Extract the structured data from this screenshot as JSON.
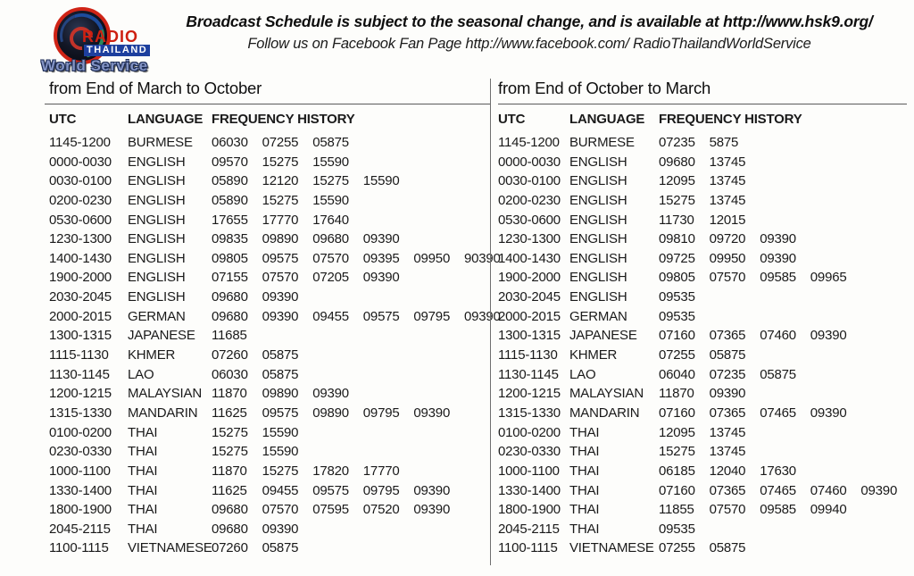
{
  "colors": {
    "logo_red": "#ce2011",
    "logo_blue": "#1d3f9e",
    "world_service_blue": "#8494c5",
    "ink": "#1a1a1a",
    "paper": "#fdfdfb"
  },
  "masthead": {
    "logo": {
      "radio": "RADIO",
      "thailand": "THAILAND",
      "world_service": "World Service"
    },
    "notice_line1": "Broadcast Schedule is subject to the seasonal change, and is available at http://www.hsk9.org/",
    "notice_line2": "Follow us on Facebook Fan Page  http://www.facebook.com/ RadioThailandWorldService"
  },
  "schedules": [
    {
      "season_title": "from End of March to October",
      "columns": {
        "utc": "UTC",
        "language": "LANGUAGE",
        "frequency_history": "FREQUENCY HISTORY"
      },
      "rows": [
        {
          "utc": "1145-1200",
          "language": "BURMESE",
          "frequencies": [
            "06030",
            "07255",
            "05875"
          ]
        },
        {
          "utc": "0000-0030",
          "language": "ENGLISH",
          "frequencies": [
            "09570",
            "15275",
            "15590"
          ]
        },
        {
          "utc": "0030-0100",
          "language": "ENGLISH",
          "frequencies": [
            "05890",
            "12120",
            "15275",
            "15590"
          ]
        },
        {
          "utc": "0200-0230",
          "language": "ENGLISH",
          "frequencies": [
            "05890",
            "15275",
            "15590"
          ]
        },
        {
          "utc": "0530-0600",
          "language": "ENGLISH",
          "frequencies": [
            "17655",
            "17770",
            "17640"
          ]
        },
        {
          "utc": "1230-1300",
          "language": "ENGLISH",
          "frequencies": [
            "09835",
            "09890",
            "09680",
            "09390"
          ]
        },
        {
          "utc": "1400-1430",
          "language": "ENGLISH",
          "frequencies": [
            "09805",
            "09575",
            "07570",
            "09395",
            "09950",
            "90390"
          ]
        },
        {
          "utc": "1900-2000",
          "language": "ENGLISH",
          "frequencies": [
            "07155",
            "07570",
            "07205",
            "09390"
          ]
        },
        {
          "utc": "2030-2045",
          "language": "ENGLISH",
          "frequencies": [
            "09680",
            "09390"
          ]
        },
        {
          "utc": "2000-2015",
          "language": "GERMAN",
          "frequencies": [
            "09680",
            "09390",
            "09455",
            "09575",
            "09795",
            "09390"
          ]
        },
        {
          "utc": "1300-1315",
          "language": "JAPANESE",
          "frequencies": [
            "11685"
          ]
        },
        {
          "utc": "1115-1130",
          "language": "KHMER",
          "frequencies": [
            "07260",
            "05875"
          ]
        },
        {
          "utc": "1130-1145",
          "language": "LAO",
          "frequencies": [
            "06030",
            "05875"
          ]
        },
        {
          "utc": "1200-1215",
          "language": "MALAYSIAN",
          "frequencies": [
            "11870",
            "09890",
            "09390"
          ]
        },
        {
          "utc": "1315-1330",
          "language": "MANDARIN",
          "frequencies": [
            "11625",
            "09575",
            "09890",
            "09795",
            "09390"
          ]
        },
        {
          "utc": "0100-0200",
          "language": "THAI",
          "frequencies": [
            "15275",
            "15590"
          ]
        },
        {
          "utc": "0230-0330",
          "language": "THAI",
          "frequencies": [
            "15275",
            "15590"
          ]
        },
        {
          "utc": "1000-1100",
          "language": "THAI",
          "frequencies": [
            "11870",
            "15275",
            "17820",
            "17770"
          ]
        },
        {
          "utc": "1330-1400",
          "language": "THAI",
          "frequencies": [
            "11625",
            "09455",
            "09575",
            "09795",
            "09390"
          ]
        },
        {
          "utc": "1800-1900",
          "language": "THAI",
          "frequencies": [
            "09680",
            "07570",
            "07595",
            "07520",
            "09390"
          ]
        },
        {
          "utc": "2045-2115",
          "language": "THAI",
          "frequencies": [
            "09680",
            "09390"
          ]
        },
        {
          "utc": "1100-1115",
          "language": "VIETNAMESE",
          "frequencies": [
            "07260",
            "05875"
          ]
        }
      ]
    },
    {
      "season_title": "from End of October to March",
      "columns": {
        "utc": "UTC",
        "language": "LANGUAGE",
        "frequency_history": "FREQUENCY HISTORY"
      },
      "rows": [
        {
          "utc": "1145-1200",
          "language": "BURMESE",
          "frequencies": [
            "07235",
            "5875"
          ]
        },
        {
          "utc": "0000-0030",
          "language": "ENGLISH",
          "frequencies": [
            "09680",
            "13745"
          ]
        },
        {
          "utc": "0030-0100",
          "language": "ENGLISH",
          "frequencies": [
            "12095",
            "13745"
          ]
        },
        {
          "utc": "0200-0230",
          "language": "ENGLISH",
          "frequencies": [
            "15275",
            "13745"
          ]
        },
        {
          "utc": "0530-0600",
          "language": "ENGLISH",
          "frequencies": [
            "11730",
            "12015"
          ]
        },
        {
          "utc": "1230-1300",
          "language": "ENGLISH",
          "frequencies": [
            "09810",
            "09720",
            "09390"
          ]
        },
        {
          "utc": "1400-1430",
          "language": "ENGLISH",
          "frequencies": [
            "09725",
            "09950",
            "09390"
          ]
        },
        {
          "utc": "1900-2000",
          "language": "ENGLISH",
          "frequencies": [
            "09805",
            "07570",
            "09585",
            "09965"
          ]
        },
        {
          "utc": "2030-2045",
          "language": "ENGLISH",
          "frequencies": [
            "09535"
          ]
        },
        {
          "utc": "2000-2015",
          "language": "GERMAN",
          "frequencies": [
            "09535"
          ]
        },
        {
          "utc": "1300-1315",
          "language": "JAPANESE",
          "frequencies": [
            "07160",
            "07365",
            "07460",
            "09390"
          ]
        },
        {
          "utc": "1115-1130",
          "language": "KHMER",
          "frequencies": [
            "07255",
            "05875"
          ]
        },
        {
          "utc": "1130-1145",
          "language": "LAO",
          "frequencies": [
            "06040",
            "07235",
            "05875"
          ]
        },
        {
          "utc": "1200-1215",
          "language": "MALAYSIAN",
          "frequencies": [
            "11870",
            "09390"
          ]
        },
        {
          "utc": "1315-1330",
          "language": "MANDARIN",
          "frequencies": [
            "07160",
            "07365",
            "07465",
            "09390"
          ]
        },
        {
          "utc": "0100-0200",
          "language": "THAI",
          "frequencies": [
            "12095",
            "13745"
          ]
        },
        {
          "utc": "0230-0330",
          "language": "THAI",
          "frequencies": [
            "15275",
            "13745"
          ]
        },
        {
          "utc": "1000-1100",
          "language": "THAI",
          "frequencies": [
            "06185",
            "12040",
            "17630"
          ]
        },
        {
          "utc": "1330-1400",
          "language": "THAI",
          "frequencies": [
            "07160",
            "07365",
            "07465",
            "07460",
            "09390"
          ]
        },
        {
          "utc": "1800-1900",
          "language": "THAI",
          "frequencies": [
            "11855",
            "07570",
            "09585",
            "09940"
          ]
        },
        {
          "utc": "2045-2115",
          "language": "THAI",
          "frequencies": [
            "09535"
          ]
        },
        {
          "utc": "1100-1115",
          "language": "VIETNAMESE",
          "frequencies": [
            "07255",
            "05875"
          ]
        }
      ]
    }
  ]
}
